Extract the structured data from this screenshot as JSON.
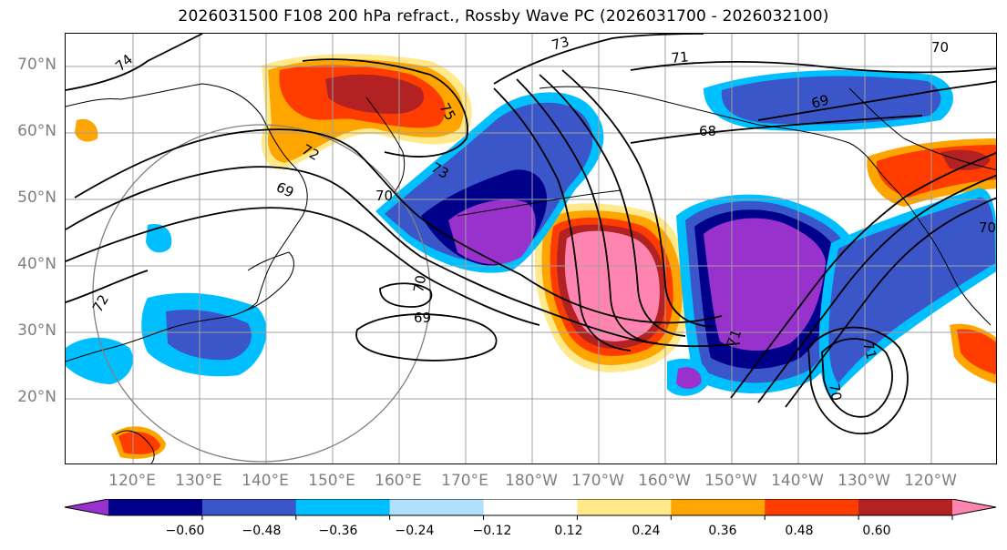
{
  "title": "2026031500 F108 200 hPa refract., Rossby Wave PC (2026031700 - 2026032100)",
  "lat_labels": [
    "70°N",
    "60°N",
    "50°N",
    "40°N",
    "30°N",
    "20°N"
  ],
  "lon_labels": [
    "120°E",
    "130°E",
    "140°E",
    "150°E",
    "160°E",
    "170°E",
    "180°W",
    "170°W",
    "160°W",
    "150°W",
    "140°W",
    "130°W",
    "120°W"
  ],
  "contour_labels": [
    "74",
    "73",
    "71",
    "70",
    "75",
    "72",
    "69",
    "68",
    "70",
    "69",
    "70",
    "72",
    "71",
    "71",
    "70",
    "69",
    "73",
    "70"
  ],
  "colorbar": {
    "ticks": [
      "−0.60",
      "−0.48",
      "−0.36",
      "−0.24",
      "−0.12",
      "0.12",
      "0.24",
      "0.36",
      "0.48",
      "0.60"
    ],
    "colors": [
      "#9932cc",
      "#00008b",
      "#3a56c8",
      "#00bfff",
      "#b0e0fa",
      "#ffffff",
      "#ffe98a",
      "#ffa500",
      "#ff3c00",
      "#b22222",
      "#ff85b0"
    ],
    "extend": "both"
  },
  "colors": {
    "gridline": "#a0a0a0",
    "contour": "#000000",
    "ring": "#808080"
  }
}
